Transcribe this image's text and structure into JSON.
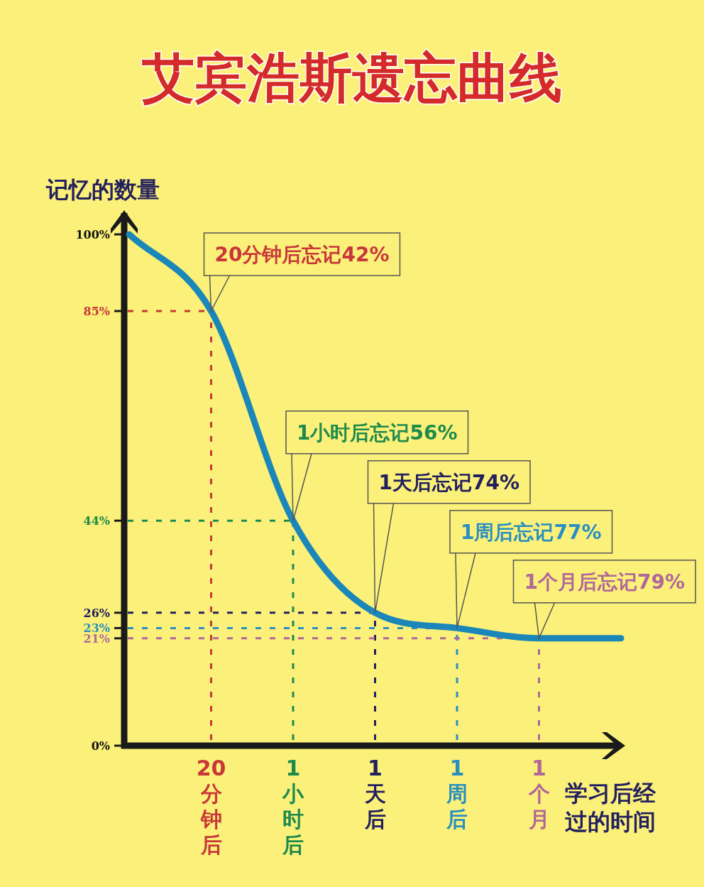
{
  "chart_data": {
    "type": "line",
    "title": "艾宾浩斯遗忘曲线",
    "ylabel": "记忆的数量",
    "xlabel": "学习后经过的时间",
    "categories": [
      null,
      "20分钟后",
      "1小时后",
      "1天后",
      "1周后",
      "1个月",
      null
    ],
    "series": [
      {
        "color": "#1b87b8",
        "values": [
          100,
          85,
          44,
          26,
          23,
          21,
          21
        ]
      }
    ],
    "ylim": [
      0,
      100
    ],
    "yticks": [
      {
        "value": 0,
        "label": "0%"
      },
      {
        "value": 21,
        "label": "21%"
      },
      {
        "value": 23,
        "label": "23%"
      },
      {
        "value": 26,
        "label": "26%"
      },
      {
        "value": 44,
        "label": "44%"
      },
      {
        "value": 85,
        "label": "85%"
      },
      {
        "value": 100,
        "label": "100%"
      }
    ],
    "ref_lines": [
      {
        "axis": "y",
        "value": 85,
        "color": "#c8373a",
        "line_style": "dashed"
      },
      {
        "axis": "x",
        "value": "20分钟后",
        "color": "#c8373a",
        "line_style": "dashed"
      },
      {
        "axis": "y",
        "value": 44,
        "color": "#1f8a4c",
        "line_style": "dashed"
      },
      {
        "axis": "x",
        "value": "1小时后",
        "color": "#1f8a4c",
        "line_style": "dashed"
      },
      {
        "axis": "y",
        "value": 26,
        "color": "#23205e",
        "line_style": "dashed"
      },
      {
        "axis": "x",
        "value": "1天后",
        "color": "#23205e",
        "line_style": "dashed"
      },
      {
        "axis": "y",
        "value": 23,
        "color": "#2a8fc0",
        "line_style": "dashed"
      },
      {
        "axis": "x",
        "value": "1周后",
        "color": "#2a8fc0",
        "line_style": "dashed"
      },
      {
        "axis": "y",
        "value": 21,
        "color": "#b0679a",
        "line_style": "dashed"
      },
      {
        "axis": "x",
        "value": "1个月",
        "color": "#b0679a",
        "line_style": "dashed"
      }
    ],
    "annotations": [
      "20分钟后忘记42%",
      "1小时后忘记56%",
      "1天后忘记74%",
      "1周后忘记77%",
      "1个月后忘记79%"
    ]
  }
}
